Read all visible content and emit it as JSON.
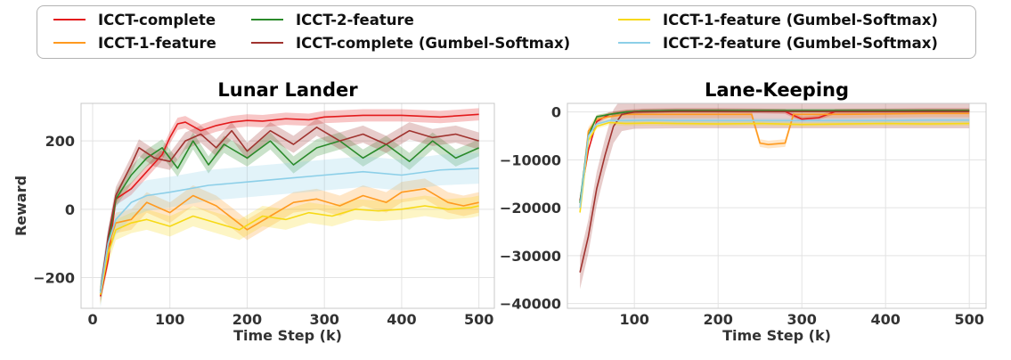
{
  "legend": {
    "placement": "top, outside plots",
    "items": [
      {
        "label": "ICCT-complete",
        "color": "#e31a1c"
      },
      {
        "label": "ICCT-1-feature",
        "color": "#ff9a1f"
      },
      {
        "label": "ICCT-2-feature",
        "color": "#2a8a2a"
      },
      {
        "label": "ICCT-complete (Gumbel-Softmax)",
        "color": "#a0332f"
      },
      {
        "label": "ICCT-1-feature (Gumbel-Softmax)",
        "color": "#f7d916"
      },
      {
        "label": "ICCT-2-feature (Gumbel-Softmax)",
        "color": "#8ccfe8"
      }
    ]
  },
  "chart_data": [
    {
      "type": "line",
      "title": "Lunar Lander",
      "xlabel": "Time Step (k)",
      "ylabel": "Reward",
      "xlim": [
        -15,
        520
      ],
      "ylim": [
        -290,
        310
      ],
      "xticks": [
        0,
        100,
        200,
        300,
        400,
        500
      ],
      "yticks": [
        -200,
        0,
        200
      ],
      "grid": true,
      "shaded_band": true,
      "series": [
        {
          "name": "ICCT-complete",
          "x": [
            10,
            20,
            30,
            50,
            70,
            90,
            100,
            110,
            120,
            140,
            160,
            180,
            200,
            220,
            250,
            280,
            300,
            350,
            400,
            450,
            500
          ],
          "y": [
            -255,
            -150,
            30,
            60,
            110,
            160,
            210,
            250,
            255,
            230,
            245,
            255,
            260,
            258,
            265,
            262,
            270,
            275,
            275,
            270,
            278
          ],
          "band": 18
        },
        {
          "name": "ICCT-1-feature",
          "x": [
            10,
            20,
            30,
            50,
            70,
            100,
            130,
            160,
            200,
            230,
            260,
            290,
            320,
            350,
            380,
            400,
            430,
            460,
            480,
            500
          ],
          "y": [
            -250,
            -110,
            -40,
            -30,
            20,
            -10,
            40,
            10,
            -60,
            -20,
            20,
            30,
            10,
            40,
            20,
            50,
            60,
            20,
            10,
            20
          ],
          "band": 30
        },
        {
          "name": "ICCT-2-feature",
          "x": [
            10,
            20,
            30,
            50,
            70,
            90,
            110,
            130,
            150,
            170,
            200,
            230,
            260,
            290,
            320,
            350,
            380,
            410,
            440,
            470,
            500
          ],
          "y": [
            -240,
            -100,
            30,
            100,
            150,
            180,
            120,
            200,
            130,
            190,
            150,
            200,
            130,
            180,
            200,
            150,
            190,
            140,
            200,
            150,
            180
          ],
          "band": 25
        },
        {
          "name": "ICCT-complete (Gumbel-Softmax)",
          "x": [
            10,
            20,
            30,
            50,
            60,
            80,
            100,
            120,
            140,
            160,
            180,
            200,
            230,
            260,
            290,
            320,
            350,
            380,
            410,
            440,
            470,
            500
          ],
          "y": [
            -245,
            -80,
            40,
            130,
            180,
            150,
            140,
            200,
            220,
            180,
            230,
            170,
            230,
            190,
            240,
            200,
            220,
            190,
            230,
            210,
            220,
            200
          ],
          "band": 25
        },
        {
          "name": "ICCT-1-feature (Gumbel-Softmax)",
          "x": [
            10,
            20,
            30,
            50,
            70,
            100,
            130,
            160,
            190,
            220,
            250,
            280,
            310,
            340,
            370,
            400,
            430,
            460,
            490,
            500
          ],
          "y": [
            -250,
            -130,
            -60,
            -40,
            -30,
            -50,
            -20,
            -40,
            -60,
            -20,
            -30,
            -10,
            -20,
            0,
            -5,
            0,
            10,
            0,
            5,
            10
          ],
          "band": 30
        },
        {
          "name": "ICCT-2-feature (Gumbel-Softmax)",
          "x": [
            10,
            20,
            30,
            50,
            70,
            100,
            150,
            200,
            250,
            300,
            350,
            400,
            450,
            500
          ],
          "y": [
            -245,
            -100,
            -30,
            20,
            40,
            50,
            70,
            80,
            90,
            100,
            110,
            100,
            115,
            120
          ],
          "band": 45
        }
      ]
    },
    {
      "type": "line",
      "title": "Lane-Keeping",
      "xlabel": "Time Step (k)",
      "ylabel": "",
      "xlim": [
        20,
        520
      ],
      "ylim": [
        -41000,
        1800
      ],
      "xticks": [
        100,
        200,
        300,
        400,
        500
      ],
      "yticks": [
        -40000,
        -30000,
        -20000,
        -10000,
        0
      ],
      "grid": true,
      "shaded_band": true,
      "series": [
        {
          "name": "ICCT-complete",
          "x": [
            35,
            45,
            55,
            70,
            90,
            110,
            150,
            200,
            250,
            280,
            300,
            320,
            340,
            360,
            400,
            450,
            500
          ],
          "y": [
            -18500,
            -8000,
            -2000,
            -500,
            0,
            200,
            300,
            300,
            200,
            100,
            -1500,
            -1200,
            100,
            150,
            200,
            300,
            300
          ],
          "band": 500
        },
        {
          "name": "ICCT-1-feature",
          "x": [
            35,
            45,
            55,
            70,
            90,
            110,
            150,
            200,
            240,
            250,
            260,
            280,
            290,
            300,
            350,
            400,
            450,
            500
          ],
          "y": [
            -20000,
            -4000,
            -1500,
            -1000,
            -500,
            -500,
            -500,
            -500,
            -500,
            -6500,
            -6800,
            -6500,
            -500,
            -500,
            -500,
            -400,
            -300,
            -300
          ],
          "band": 800
        },
        {
          "name": "ICCT-2-feature",
          "x": [
            35,
            45,
            55,
            70,
            90,
            110,
            150,
            200,
            250,
            300,
            350,
            400,
            450,
            500
          ],
          "y": [
            -19000,
            -5000,
            -1000,
            -500,
            0,
            200,
            300,
            300,
            300,
            300,
            300,
            300,
            300,
            300
          ],
          "band": 400
        },
        {
          "name": "ICCT-complete (Gumbel-Softmax)",
          "x": [
            35,
            45,
            55,
            65,
            75,
            85,
            100,
            150,
            200,
            300,
            400,
            500
          ],
          "y": [
            -33500,
            -26000,
            -16000,
            -9000,
            -3000,
            -500,
            0,
            100,
            100,
            100,
            100,
            100
          ],
          "band": 3500
        },
        {
          "name": "ICCT-1-feature (Gumbel-Softmax)",
          "x": [
            35,
            45,
            55,
            70,
            90,
            120,
            150,
            200,
            250,
            300,
            350,
            400,
            450,
            500
          ],
          "y": [
            -21000,
            -6000,
            -3000,
            -2200,
            -2400,
            -2300,
            -2400,
            -2500,
            -2400,
            -2600,
            -2500,
            -2400,
            -2500,
            -2400
          ],
          "band": 500
        },
        {
          "name": "ICCT-2-feature (Gumbel-Softmax)",
          "x": [
            35,
            45,
            55,
            70,
            90,
            120,
            150,
            200,
            250,
            300,
            350,
            400,
            450,
            500
          ],
          "y": [
            -20000,
            -5000,
            -2500,
            -1800,
            -1800,
            -1700,
            -1800,
            -1800,
            -1800,
            -1800,
            -1800,
            -1800,
            -1700,
            -1700
          ],
          "band": 500
        }
      ]
    }
  ]
}
